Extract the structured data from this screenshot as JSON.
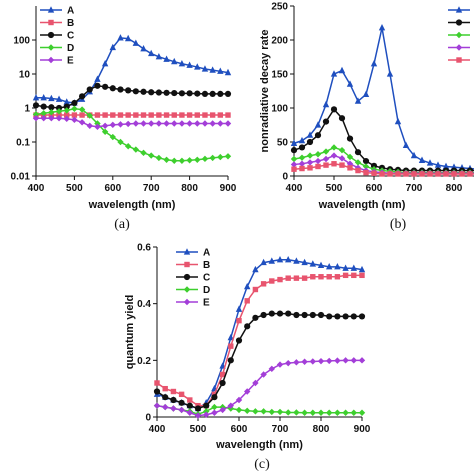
{
  "chart_data": [
    {
      "panel_id": "a",
      "type": "line",
      "caption": "(a)",
      "xlabel": "wavelength (nm)",
      "ylabel": "",
      "xlim": [
        400,
        900
      ],
      "ylim": [
        0.01,
        1000
      ],
      "yscale": "log",
      "xticks": [
        400,
        500,
        600,
        700,
        800,
        900
      ],
      "yticks": [
        0.01,
        0.1,
        1,
        10,
        100
      ],
      "ytick_labels": [
        "0.01",
        "0.1",
        "1",
        "10",
        "100"
      ],
      "grid": false,
      "legend_position": "top-left",
      "x": [
        400,
        420,
        440,
        460,
        480,
        500,
        520,
        540,
        560,
        580,
        600,
        620,
        640,
        660,
        680,
        700,
        720,
        740,
        760,
        780,
        800,
        820,
        840,
        860,
        880,
        900
      ],
      "series": [
        {
          "name": "A",
          "color": "#1f4fbf",
          "marker": "triangle",
          "values": [
            2.0,
            2.0,
            1.9,
            1.8,
            1.5,
            1.4,
            1.8,
            3.0,
            7,
            20,
            60,
            115,
            110,
            80,
            55,
            40,
            32,
            27,
            23,
            20,
            18,
            16,
            14,
            13,
            12,
            11
          ]
        },
        {
          "name": "B",
          "color": "#e8546e",
          "marker": "square",
          "values": [
            0.62,
            0.62,
            0.62,
            0.62,
            0.62,
            0.62,
            0.62,
            0.62,
            0.62,
            0.62,
            0.62,
            0.62,
            0.62,
            0.62,
            0.62,
            0.62,
            0.62,
            0.62,
            0.62,
            0.62,
            0.62,
            0.62,
            0.62,
            0.62,
            0.62,
            0.62
          ]
        },
        {
          "name": "C",
          "color": "#111111",
          "marker": "circle",
          "values": [
            1.2,
            1.1,
            1.05,
            1.0,
            1.1,
            1.4,
            2.2,
            3.5,
            4.5,
            4.2,
            3.8,
            3.5,
            3.3,
            3.1,
            3.0,
            2.9,
            2.85,
            2.8,
            2.75,
            2.7,
            2.7,
            2.65,
            2.6,
            2.6,
            2.6,
            2.6
          ]
        },
        {
          "name": "D",
          "color": "#3ecf2e",
          "marker": "diamond",
          "values": [
            0.65,
            0.7,
            0.75,
            0.8,
            0.85,
            0.95,
            0.9,
            0.6,
            0.35,
            0.2,
            0.14,
            0.1,
            0.075,
            0.06,
            0.048,
            0.04,
            0.034,
            0.03,
            0.028,
            0.028,
            0.029,
            0.03,
            0.032,
            0.034,
            0.036,
            0.038
          ]
        },
        {
          "name": "E",
          "color": "#a33ed8",
          "marker": "diamond",
          "values": [
            0.5,
            0.5,
            0.5,
            0.5,
            0.48,
            0.45,
            0.38,
            0.3,
            0.28,
            0.3,
            0.32,
            0.33,
            0.34,
            0.35,
            0.35,
            0.35,
            0.35,
            0.35,
            0.35,
            0.35,
            0.35,
            0.35,
            0.35,
            0.35,
            0.35,
            0.35
          ]
        }
      ]
    },
    {
      "panel_id": "b",
      "type": "line",
      "caption": "(b)",
      "xlabel": "wavelength (nm)",
      "ylabel": "nonradiative decay rate",
      "xlim": [
        400,
        850
      ],
      "ylim": [
        0,
        250
      ],
      "yscale": "linear",
      "xticks": [
        400,
        500,
        600,
        700,
        800
      ],
      "yticks": [
        0,
        50,
        100,
        150,
        200,
        250
      ],
      "ytick_labels": [
        "0",
        "50",
        "100",
        "150",
        "200",
        "250"
      ],
      "grid": false,
      "legend_position": "top-right",
      "x": [
        400,
        420,
        440,
        460,
        480,
        500,
        520,
        540,
        560,
        580,
        600,
        620,
        640,
        660,
        680,
        700,
        720,
        740,
        760,
        780,
        800,
        820,
        840,
        860,
        880,
        900
      ],
      "series": [
        {
          "name": "",
          "color": "#1f4fbf",
          "marker": "triangle",
          "values": [
            48,
            52,
            60,
            75,
            105,
            150,
            155,
            135,
            110,
            120,
            165,
            218,
            150,
            80,
            45,
            30,
            23,
            19,
            16,
            14,
            13,
            12,
            11,
            10,
            10,
            10
          ]
        },
        {
          "name": "",
          "color": "#111111",
          "marker": "circle",
          "values": [
            38,
            42,
            50,
            60,
            80,
            98,
            85,
            55,
            35,
            22,
            15,
            12,
            10,
            9,
            8,
            8,
            8,
            8,
            8,
            8,
            8,
            8,
            8,
            8,
            8,
            8
          ]
        },
        {
          "name": "",
          "color": "#3ecf2e",
          "marker": "diamond",
          "values": [
            25,
            27,
            30,
            32,
            36,
            42,
            38,
            28,
            20,
            14,
            10,
            8,
            7,
            6,
            5,
            5,
            5,
            5,
            5,
            5,
            5,
            5,
            5,
            5,
            5,
            5
          ]
        },
        {
          "name": "",
          "color": "#a33ed8",
          "marker": "diamond",
          "values": [
            17,
            18,
            20,
            22,
            25,
            30,
            26,
            18,
            12,
            8,
            6,
            5,
            4,
            4,
            4,
            4,
            4,
            4,
            4,
            4,
            4,
            4,
            4,
            4,
            4,
            4
          ]
        },
        {
          "name": "",
          "color": "#e8546e",
          "marker": "square",
          "values": [
            10,
            11,
            12,
            14,
            16,
            18,
            16,
            12,
            8,
            5,
            4,
            3,
            3,
            3,
            3,
            3,
            3,
            3,
            3,
            3,
            3,
            3,
            3,
            3,
            3,
            3
          ]
        }
      ]
    },
    {
      "panel_id": "c",
      "type": "line",
      "caption": "(c)",
      "xlabel": "wavelength (nm)",
      "ylabel": "quantum yield",
      "xlim": [
        400,
        900
      ],
      "ylim": [
        0,
        0.6
      ],
      "yscale": "linear",
      "xticks": [
        400,
        500,
        600,
        700,
        800,
        900
      ],
      "yticks": [
        0,
        0.2,
        0.4,
        0.6
      ],
      "ytick_labels": [
        "0",
        "0.2",
        "0.4",
        "0.6"
      ],
      "grid": false,
      "legend_position": "top-left",
      "x": [
        400,
        420,
        440,
        460,
        480,
        500,
        520,
        540,
        560,
        580,
        600,
        620,
        640,
        660,
        680,
        700,
        720,
        740,
        760,
        780,
        800,
        820,
        840,
        860,
        880,
        900
      ],
      "series": [
        {
          "name": "A",
          "color": "#1f4fbf",
          "marker": "triangle",
          "values": [
            0.08,
            0.07,
            0.06,
            0.05,
            0.04,
            0.03,
            0.05,
            0.1,
            0.18,
            0.28,
            0.38,
            0.46,
            0.52,
            0.545,
            0.55,
            0.555,
            0.555,
            0.55,
            0.545,
            0.54,
            0.535,
            0.53,
            0.53,
            0.525,
            0.525,
            0.52
          ]
        },
        {
          "name": "B",
          "color": "#e8546e",
          "marker": "square",
          "values": [
            0.12,
            0.1,
            0.09,
            0.08,
            0.06,
            0.04,
            0.04,
            0.08,
            0.15,
            0.25,
            0.34,
            0.41,
            0.45,
            0.47,
            0.48,
            0.485,
            0.49,
            0.49,
            0.49,
            0.495,
            0.495,
            0.495,
            0.495,
            0.5,
            0.5,
            0.5
          ]
        },
        {
          "name": "C",
          "color": "#111111",
          "marker": "circle",
          "values": [
            0.09,
            0.07,
            0.06,
            0.05,
            0.04,
            0.03,
            0.04,
            0.07,
            0.12,
            0.2,
            0.27,
            0.32,
            0.35,
            0.36,
            0.365,
            0.365,
            0.365,
            0.36,
            0.36,
            0.36,
            0.36,
            0.355,
            0.355,
            0.355,
            0.355,
            0.355
          ]
        },
        {
          "name": "D",
          "color": "#3ecf2e",
          "marker": "diamond",
          "values": [
            0.04,
            0.035,
            0.03,
            0.025,
            0.02,
            0.01,
            0.02,
            0.035,
            0.035,
            0.03,
            0.025,
            0.022,
            0.02,
            0.02,
            0.018,
            0.018,
            0.016,
            0.016,
            0.015,
            0.015,
            0.015,
            0.015,
            0.015,
            0.015,
            0.015,
            0.015
          ]
        },
        {
          "name": "E",
          "color": "#a33ed8",
          "marker": "diamond",
          "values": [
            0.04,
            0.035,
            0.03,
            0.025,
            0.015,
            0.005,
            0.008,
            0.015,
            0.025,
            0.04,
            0.06,
            0.09,
            0.12,
            0.15,
            0.17,
            0.185,
            0.19,
            0.193,
            0.195,
            0.196,
            0.197,
            0.198,
            0.199,
            0.2,
            0.2,
            0.2
          ]
        }
      ]
    }
  ]
}
